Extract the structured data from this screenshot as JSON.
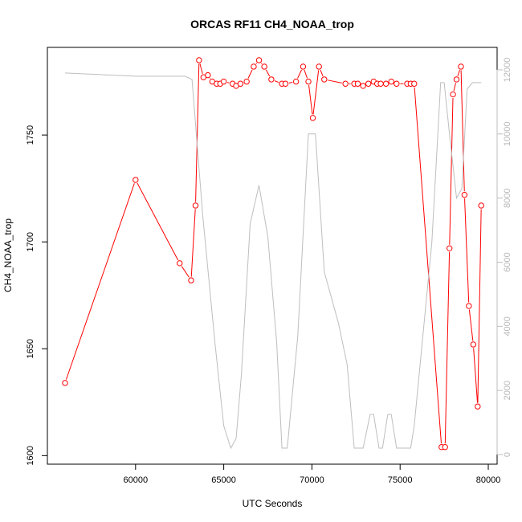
{
  "chart_data": {
    "type": "line",
    "title": "ORCAS RF11 CH4_NOAA_trop",
    "xlabel": "UTC Seconds",
    "ylabel": "CH4_NOAA_trop",
    "xlim": [
      55000,
      80500
    ],
    "ylim": [
      1596,
      1791
    ],
    "y2lim": [
      -300,
      12700
    ],
    "x_ticks": [
      60000,
      65000,
      70000,
      75000,
      80000
    ],
    "y_ticks": [
      1600,
      1650,
      1700,
      1750
    ],
    "y2_ticks": [
      0,
      2000,
      4000,
      6000,
      8000,
      10000,
      12000
    ],
    "colors": {
      "primary": "#ff0000",
      "secondary": "#bebebe"
    },
    "series": [
      {
        "axis": "left",
        "style": "line-points",
        "x": [
          56000,
          60000,
          62500,
          63150,
          63400,
          63600,
          63850,
          64100,
          64350,
          64600,
          64800,
          65000,
          65500,
          65700,
          65950,
          66300,
          66700,
          67000,
          67300,
          67700,
          68300,
          68500,
          69100,
          69500,
          69800,
          70050,
          70400,
          70700,
          71900,
          72400,
          72600,
          72900,
          73200,
          73500,
          73700,
          73900,
          74200,
          74500,
          74800,
          75400,
          75600,
          75800,
          77350,
          77550,
          77800,
          78000,
          78200,
          78450,
          78650,
          78900,
          79150,
          79400,
          79600
        ],
        "y": [
          1634,
          1729,
          1690,
          1682,
          1717,
          1785,
          1777,
          1778,
          1775,
          1774,
          1774,
          1775,
          1774,
          1773,
          1774,
          1775,
          1782,
          1785,
          1782,
          1776,
          1774,
          1774,
          1775,
          1782,
          1775,
          1758,
          1782,
          1776,
          1774,
          1774,
          1774,
          1773,
          1774,
          1775,
          1774,
          1774,
          1774,
          1775,
          1774,
          1774,
          1774,
          1774,
          1604,
          1604,
          1697,
          1769,
          1776,
          1782,
          1722,
          1670,
          1652,
          1623,
          1717
        ]
      },
      {
        "axis": "right",
        "style": "line",
        "x": [
          56000,
          60000,
          62800,
          63200,
          63800,
          64500,
          65000,
          65400,
          65700,
          66000,
          66500,
          67000,
          67500,
          68000,
          68300,
          68600,
          69200,
          69800,
          70200,
          70700,
          71500,
          72000,
          72400,
          72900,
          73300,
          73500,
          73800,
          74000,
          74300,
          74500,
          74800,
          75200,
          75600,
          75800,
          76800,
          77300,
          77500,
          77800,
          78200,
          78500,
          78800,
          79100,
          79300,
          79600
        ],
        "y": [
          11900,
          11800,
          11800,
          11700,
          7500,
          3500,
          900,
          200,
          500,
          2500,
          7200,
          8400,
          6800,
          3500,
          200,
          200,
          3700,
          10000,
          10000,
          5700,
          4100,
          2800,
          200,
          200,
          1250,
          1250,
          200,
          200,
          1250,
          1250,
          200,
          200,
          200,
          900,
          6600,
          11600,
          11600,
          10000,
          8000,
          8300,
          11400,
          11600,
          11600,
          11600
        ]
      }
    ]
  }
}
